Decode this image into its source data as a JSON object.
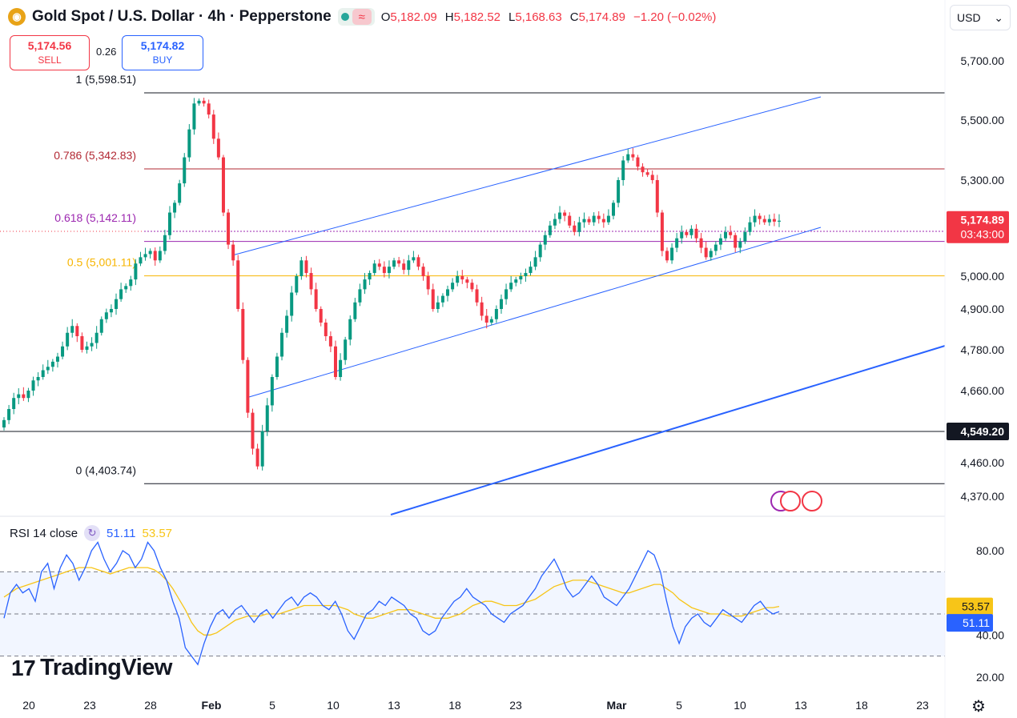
{
  "header": {
    "title": "Gold Spot / U.S. Dollar · 4h · Pepperstone",
    "ohlc": [
      {
        "k": "O",
        "v": "5,182.09"
      },
      {
        "k": "H",
        "v": "5,182.52"
      },
      {
        "k": "L",
        "v": "5,168.63"
      },
      {
        "k": "C",
        "v": "5,174.89"
      }
    ],
    "change": "−1.20 (−0.02%)"
  },
  "trade": {
    "sell_price": "5,174.56",
    "sell_label": "SELL",
    "spread": "0.26",
    "buy_price": "5,174.82",
    "buy_label": "BUY"
  },
  "currency": "USD",
  "rsi": {
    "label": "RSI 14 close",
    "value": "51.11",
    "ma": "53.57"
  },
  "brand": "TradingView",
  "colors": {
    "up": "#089981",
    "down": "#f23645",
    "rsi": "#2962ff",
    "rsi_ma": "#f7c518"
  },
  "chart_data": [
    {
      "type": "candlestick",
      "title": "Gold Spot / U.S. Dollar · 4h · Pepperstone",
      "y_ticks": [
        4370,
        4460,
        4660,
        4780,
        4900,
        5000,
        5300,
        5500,
        5700
      ],
      "x_ticks": [
        "20",
        "23",
        "28",
        "Feb",
        "5",
        "10",
        "13",
        "18",
        "23",
        "Mar",
        "5",
        "10",
        "13",
        "18",
        "23"
      ],
      "last_price": "5,174.89",
      "countdown": "03:43:00",
      "marked_level": "4,549.20",
      "fib_levels": [
        {
          "label": "1 (5,598.51)",
          "value": 5598.51,
          "color": "#131722"
        },
        {
          "label": "0.786 (5,342.83)",
          "value": 5342.83,
          "color": "#b22833"
        },
        {
          "label": "0.618 (5,142.11)",
          "value": 5142.11,
          "color": "#9c27b0"
        },
        {
          "label": "0.5 (5,001.11)",
          "value": 5001.11,
          "color": "#f7b500"
        },
        {
          "label": "0 (4,403.74)",
          "value": 4403.74,
          "color": "#131722"
        }
      ],
      "series": [
        {
          "name": "Close (approx.)",
          "values": [
            4580,
            4610,
            4640,
            4650,
            4640,
            4660,
            4690,
            4700,
            4720,
            4730,
            4745,
            4760,
            4790,
            4830,
            4850,
            4820,
            4780,
            4790,
            4800,
            4830,
            4870,
            4890,
            4900,
            4930,
            4960,
            4970,
            4990,
            5040,
            5060,
            5070,
            5080,
            5050,
            5080,
            5130,
            5200,
            5230,
            5290,
            5380,
            5470,
            5560,
            5570,
            5560,
            5520,
            5440,
            5380,
            5200,
            5100,
            5050,
            4900,
            4750,
            4600,
            4500,
            4450,
            4550,
            4620,
            4700,
            4760,
            4830,
            4880,
            4950,
            5000,
            5050,
            5010,
            4960,
            4900,
            4860,
            4820,
            4790,
            4700,
            4750,
            4810,
            4870,
            4920,
            4960,
            4990,
            5010,
            5040,
            5030,
            5010,
            5030,
            5050,
            5040,
            5020,
            5050,
            5060,
            5030,
            5000,
            4960,
            4900,
            4920,
            4940,
            4960,
            4980,
            5000,
            4990,
            4980,
            4960,
            4920,
            4880,
            4860,
            4870,
            4900,
            4930,
            4960,
            4980,
            4990,
            5000,
            5010,
            5030,
            5060,
            5100,
            5130,
            5160,
            5180,
            5200,
            5190,
            5160,
            5140,
            5170,
            5180,
            5170,
            5190,
            5180,
            5170,
            5190,
            5230,
            5300,
            5370,
            5390,
            5380,
            5350,
            5330,
            5320,
            5300,
            5200,
            5080,
            5050,
            5090,
            5120,
            5140,
            5130,
            5150,
            5120,
            5090,
            5060,
            5080,
            5100,
            5120,
            5140,
            5130,
            5090,
            5110,
            5140,
            5170,
            5190,
            5180,
            5170,
            5180,
            5172,
            5174.89
          ]
        }
      ]
    },
    {
      "type": "line",
      "title": "RSI 14 close",
      "y_ticks": [
        20,
        40,
        80
      ],
      "bands": [
        30,
        70
      ],
      "series": [
        {
          "name": "RSI",
          "values": [
            48,
            60,
            64,
            60,
            62,
            56,
            70,
            74,
            62,
            72,
            78,
            74,
            66,
            72,
            80,
            84,
            76,
            70,
            74,
            80,
            78,
            72,
            76,
            84,
            80,
            72,
            66,
            56,
            48,
            34,
            30,
            26,
            36,
            44,
            50,
            52,
            48,
            52,
            54,
            50,
            46,
            50,
            52,
            48,
            52,
            56,
            58,
            54,
            58,
            60,
            58,
            54,
            52,
            56,
            50,
            42,
            38,
            44,
            50,
            52,
            56,
            54,
            58,
            56,
            54,
            50,
            48,
            42,
            40,
            42,
            48,
            52,
            56,
            58,
            62,
            58,
            56,
            54,
            50,
            48,
            46,
            50,
            52,
            54,
            58,
            62,
            68,
            72,
            76,
            70,
            62,
            58,
            60,
            64,
            68,
            64,
            58,
            56,
            54,
            58,
            62,
            68,
            74,
            80,
            78,
            70,
            56,
            44,
            36,
            44,
            48,
            50,
            46,
            44,
            48,
            52,
            50,
            48,
            46,
            50,
            54,
            56,
            52,
            50,
            51.11
          ]
        },
        {
          "name": "RSI-based MA",
          "values": [
            58,
            60,
            62,
            63,
            64,
            65,
            66,
            67,
            68,
            69,
            70,
            71,
            72,
            72,
            72,
            71,
            70,
            69,
            70,
            71,
            72,
            72,
            72,
            72,
            71,
            69,
            66,
            62,
            57,
            52,
            46,
            42,
            40,
            40,
            41,
            43,
            45,
            47,
            48,
            49,
            49,
            49,
            50,
            50,
            50,
            51,
            52,
            53,
            54,
            54,
            54,
            54,
            54,
            54,
            53,
            52,
            50,
            49,
            48,
            48,
            49,
            50,
            51,
            52,
            52,
            52,
            51,
            50,
            49,
            48,
            48,
            48,
            49,
            50,
            52,
            54,
            55,
            56,
            56,
            55,
            54,
            54,
            54,
            55,
            56,
            57,
            59,
            61,
            63,
            64,
            65,
            66,
            66,
            66,
            65,
            64,
            63,
            62,
            61,
            60,
            60,
            61,
            62,
            63,
            64,
            64,
            62,
            60,
            57,
            55,
            53,
            52,
            51,
            50,
            50,
            50,
            49,
            49,
            49,
            50,
            51,
            52,
            53,
            53,
            53.57
          ]
        }
      ]
    }
  ]
}
